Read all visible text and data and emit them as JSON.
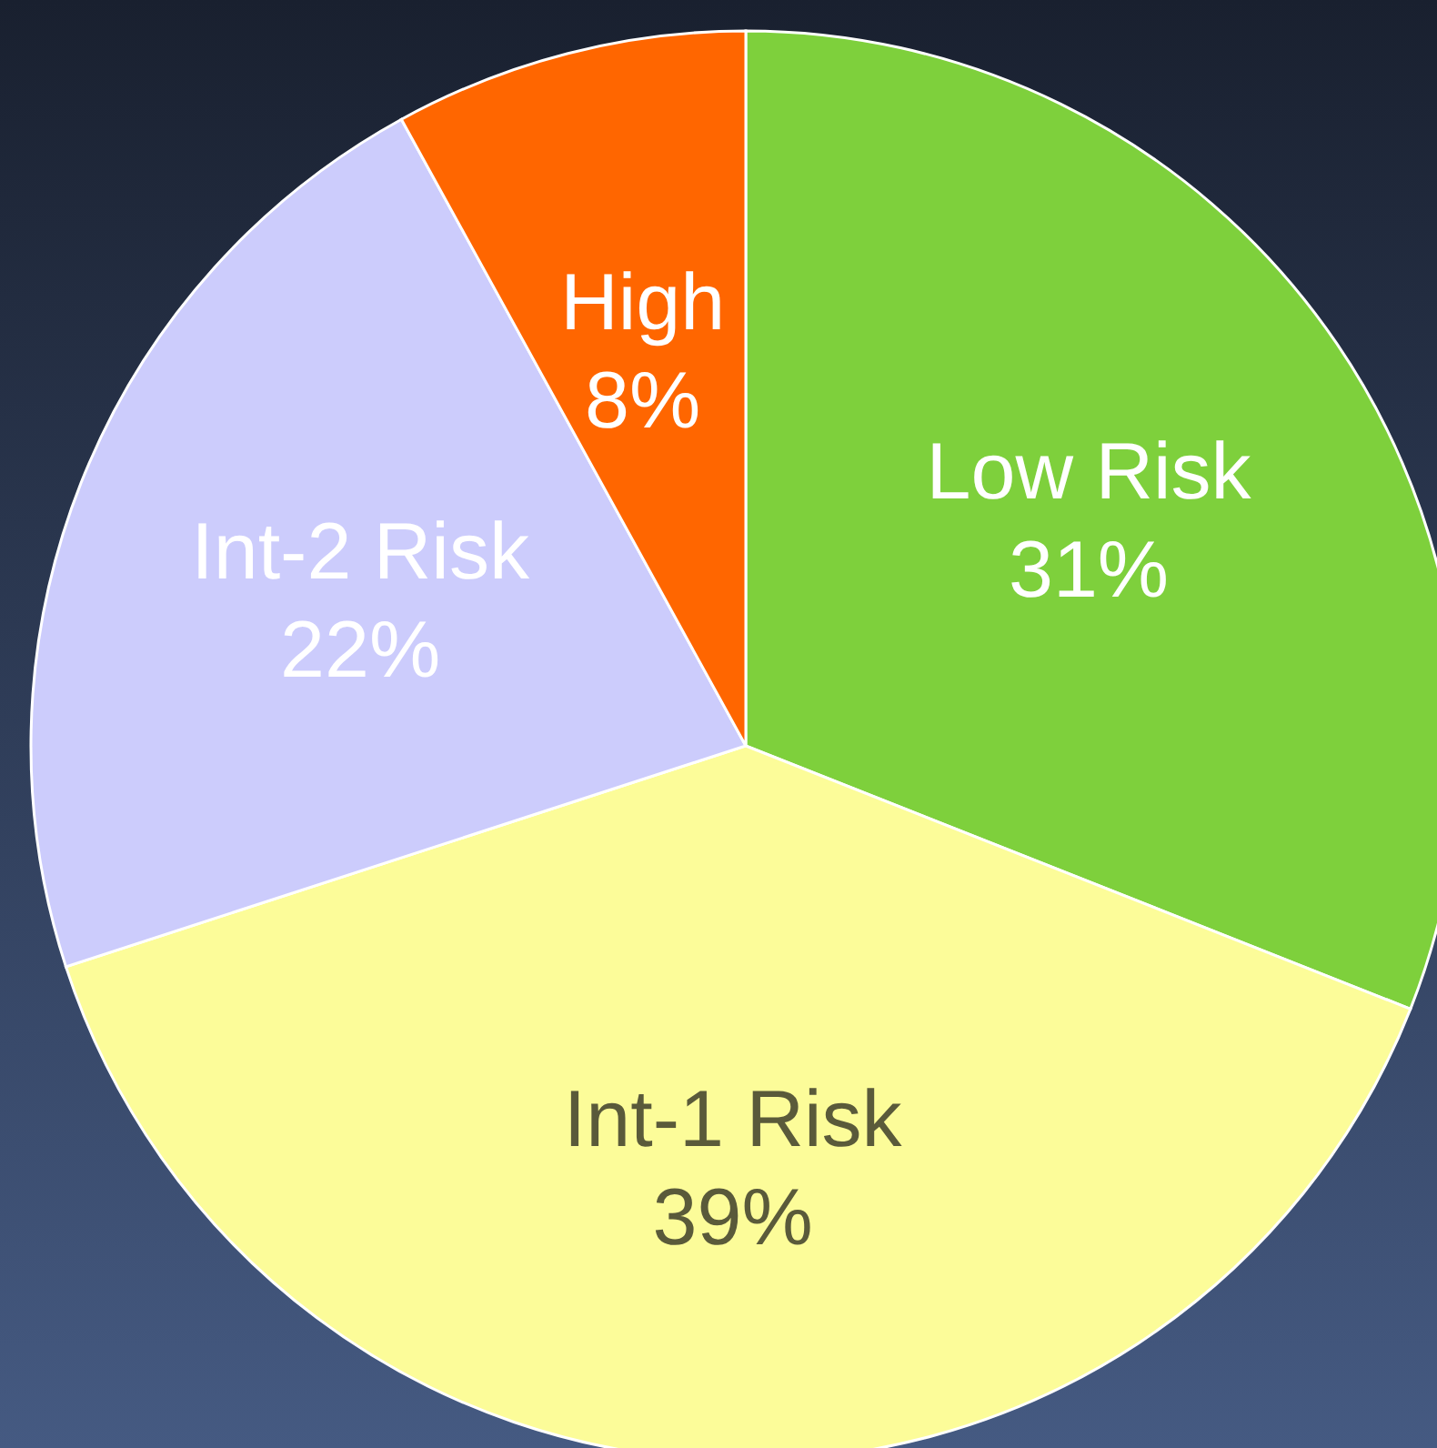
{
  "chart_data": {
    "type": "pie",
    "categories": [
      "Low Risk",
      "Int-1 Risk",
      "Int-2 Risk",
      "High"
    ],
    "values": [
      31,
      39,
      22,
      8
    ],
    "value_labels": [
      "31%",
      "39%",
      "22%",
      "8%"
    ],
    "colors": [
      "#7ed03c",
      "#fcfc99",
      "#ccccfc",
      "#ff6600"
    ],
    "legend": false
  }
}
